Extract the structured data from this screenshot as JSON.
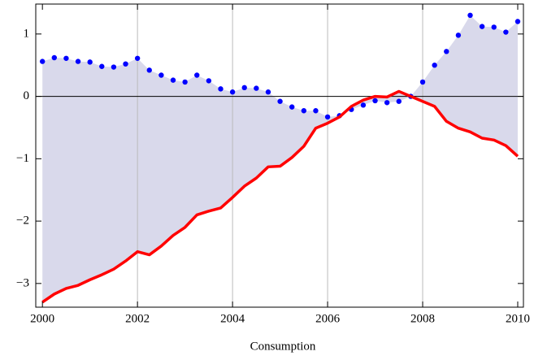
{
  "chart_data": {
    "type": "line",
    "x_label": "Consumption",
    "x": [
      2000,
      2000.25,
      2000.5,
      2000.75,
      2001,
      2001.25,
      2001.5,
      2001.75,
      2002,
      2002.25,
      2002.5,
      2002.75,
      2003,
      2003.25,
      2003.5,
      2003.75,
      2004,
      2004.25,
      2004.5,
      2004.75,
      2005,
      2005.25,
      2005.5,
      2005.75,
      2006,
      2006.25,
      2006.5,
      2006.75,
      2007,
      2007.25,
      2007.5,
      2007.75,
      2008,
      2008.25,
      2008.5,
      2008.75,
      2009,
      2009.25,
      2009.5,
      2009.75,
      2010
    ],
    "series": [
      {
        "color": "#0000ff",
        "style": "points",
        "values": [
          0.56,
          0.62,
          0.61,
          0.56,
          0.55,
          0.48,
          0.47,
          0.52,
          0.61,
          0.42,
          0.34,
          0.26,
          0.23,
          0.34,
          0.25,
          0.12,
          0.07,
          0.14,
          0.13,
          0.07,
          -0.08,
          -0.17,
          -0.23,
          -0.23,
          -0.33,
          -0.31,
          -0.21,
          -0.14,
          -0.07,
          -0.1,
          -0.08,
          0.0,
          0.23,
          0.5,
          0.72,
          0.98,
          1.3,
          1.12,
          1.11,
          1.03,
          1.2
        ]
      },
      {
        "color": "#ff0000",
        "style": "line",
        "values": [
          -3.3,
          -3.17,
          -3.08,
          -3.03,
          -2.94,
          -2.86,
          -2.77,
          -2.64,
          -2.49,
          -2.54,
          -2.4,
          -2.23,
          -2.1,
          -1.9,
          -1.84,
          -1.79,
          -1.62,
          -1.44,
          -1.31,
          -1.13,
          -1.12,
          -0.98,
          -0.8,
          -0.51,
          -0.43,
          -0.33,
          -0.16,
          -0.06,
          0.0,
          -0.01,
          0.08,
          0.0,
          -0.08,
          -0.16,
          -0.4,
          -0.51,
          -0.57,
          -0.67,
          -0.7,
          -0.79,
          -0.96
        ]
      }
    ],
    "fill_between": true,
    "fill_color": "#d9d9eb",
    "xlim": [
      1999.86,
      2010.12
    ],
    "ylim": [
      -3.38,
      1.48
    ],
    "xticks": [
      2000,
      2002,
      2004,
      2006,
      2008,
      2010
    ],
    "yticks": [
      {
        "value": -3,
        "label": "−3"
      },
      {
        "value": -2,
        "label": "−2"
      },
      {
        "value": -1,
        "label": "−1"
      },
      0,
      1
    ],
    "xgrid": [
      2002,
      2004,
      2006,
      2008
    ],
    "zero_line": true
  }
}
